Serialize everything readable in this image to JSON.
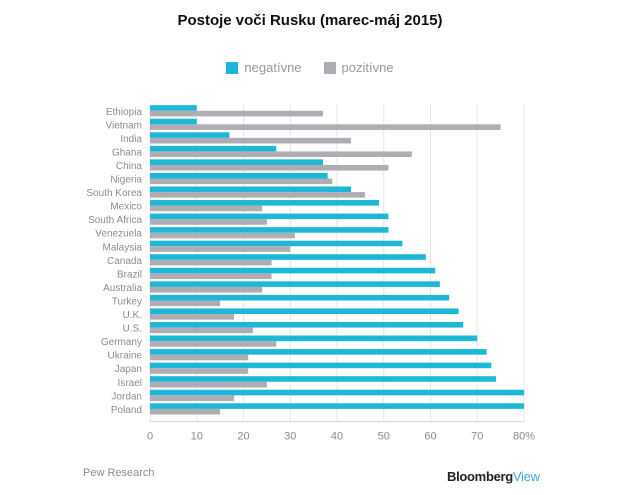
{
  "colors": {
    "negative": "#1db8d8",
    "positive": "#aeadb4"
  },
  "footer": {
    "source": "Pew Research",
    "brand_main": "Bloomberg",
    "brand_sub": "View"
  },
  "chart_data": {
    "type": "bar",
    "orientation": "horizontal",
    "title": "Postoje voči Rusku (marec-máj 2015)",
    "legend_position": "top",
    "grid": true,
    "xlim": [
      0,
      80
    ],
    "x_ticks": [
      0,
      10,
      20,
      30,
      40,
      50,
      60,
      70,
      80
    ],
    "x_tick_labels": [
      "0",
      "10",
      "20",
      "30",
      "40",
      "50",
      "60",
      "70",
      "80%"
    ],
    "categories": [
      "Ethiopia",
      "Vietnam",
      "India",
      "Ghana",
      "China",
      "Nigeria",
      "South Korea",
      "Mexico",
      "South Africa",
      "Venezuela",
      "Malaysia",
      "Canada",
      "Brazil",
      "Australia",
      "Turkey",
      "U.K.",
      "U.S.",
      "Germany",
      "Ukraine",
      "Japan",
      "Israel",
      "Jordan",
      "Poland"
    ],
    "series": [
      {
        "name": "negatívne",
        "values": [
          10,
          10,
          17,
          27,
          37,
          38,
          43,
          49,
          51,
          51,
          54,
          59,
          61,
          62,
          64,
          66,
          67,
          70,
          72,
          73,
          74,
          80,
          80
        ]
      },
      {
        "name": "pozitívne",
        "values": [
          37,
          75,
          43,
          56,
          51,
          39,
          46,
          24,
          25,
          31,
          30,
          26,
          26,
          24,
          15,
          18,
          22,
          27,
          21,
          21,
          25,
          18,
          15
        ]
      }
    ]
  }
}
